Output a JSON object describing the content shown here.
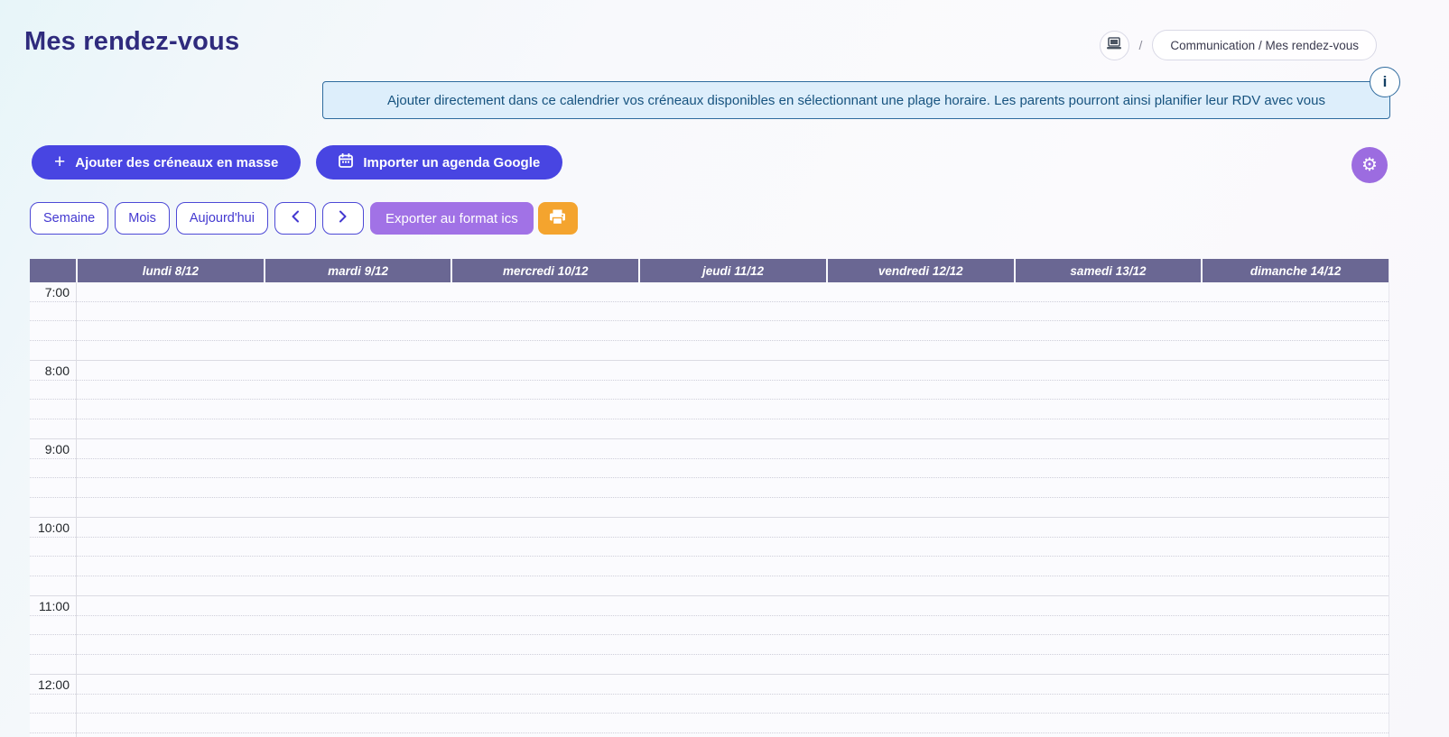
{
  "page": {
    "title": "Mes rendez-vous"
  },
  "breadcrumb": {
    "device_icon": "laptop-icon",
    "separator": "/",
    "label": "Communication / Mes rendez-vous"
  },
  "info_banner": {
    "text": "Ajouter directement dans ce calendrier vos créneaux disponibles en sélectionnant une plage horaire. Les parents pourront ainsi planifier leur RDV avec vous",
    "icon_label": "i"
  },
  "actions": {
    "bulk_add_label": "Ajouter des créneaux en masse",
    "import_google_label": "Importer un agenda Google"
  },
  "toolbar": {
    "week_label": "Semaine",
    "month_label": "Mois",
    "today_label": "Aujourd'hui",
    "export_ics_label": "Exporter au format ics"
  },
  "calendar": {
    "view": "week",
    "days": [
      "lundi 8/12",
      "mardi 9/12",
      "mercredi 10/12",
      "jeudi 11/12",
      "vendredi 12/12",
      "samedi 13/12",
      "dimanche 14/12"
    ],
    "hours": [
      "7:00",
      "8:00",
      "9:00",
      "10:00",
      "11:00",
      "12:00"
    ],
    "slots_per_hour": 4,
    "events": []
  },
  "colors": {
    "accent_indigo": "#4845e2",
    "accent_purple": "#a172e6",
    "accent_orange": "#f4a42e",
    "gear_purple": "#9c6ce0",
    "calendar_header_bg": "#6a6793",
    "banner_bg": "#ddeefb",
    "banner_border": "#2e6b9e",
    "banner_text": "#17537f",
    "title_text": "#2f2b7d"
  }
}
